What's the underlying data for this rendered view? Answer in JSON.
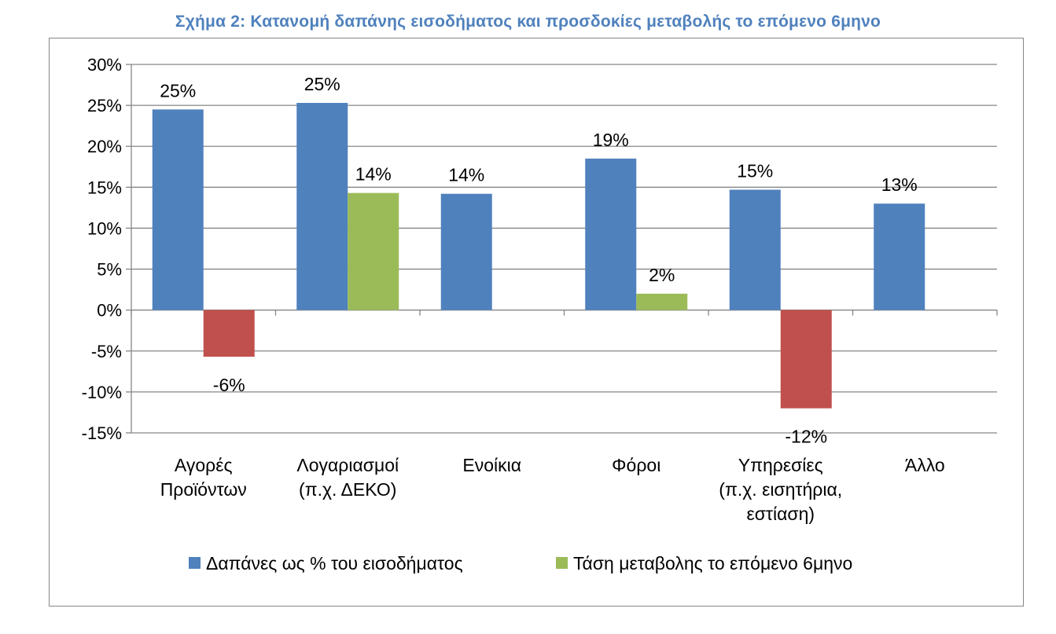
{
  "chart_data": {
    "type": "bar",
    "title": "Σχήμα 2: Κατανομή δαπάνης εισοδήματος και προσδοκίες μεταβολής το επόμενο 6μηνο",
    "categories": [
      [
        "Αγορές",
        "Προϊόντων"
      ],
      [
        "Λογαριασμοί",
        "(π.χ. ΔΕΚΟ)"
      ],
      [
        "Ενοίκια"
      ],
      [
        "Φόροι"
      ],
      [
        "Υπηρεσίες",
        "(π.χ. εισητήρια,",
        "εστίαση)"
      ],
      [
        "Άλλο"
      ]
    ],
    "series": [
      {
        "name": "Δαπάνες ως % του εισοδήματος",
        "values": [
          24.5,
          25.3,
          14.2,
          18.5,
          14.7,
          13.0
        ],
        "labels": [
          "25%",
          "25%",
          "14%",
          "19%",
          "15%",
          "13%"
        ]
      },
      {
        "name": "Τάση μεταβολης το επόμενο 6μηνο",
        "values": [
          -5.7,
          14.3,
          null,
          2.0,
          -12.0,
          null
        ],
        "labels": [
          "-6%",
          "14%",
          null,
          "2%",
          "-12%",
          null
        ]
      }
    ],
    "ylim": [
      -15,
      30
    ],
    "yticks": [
      "30%",
      "25%",
      "20%",
      "15%",
      "10%",
      "5%",
      "0%",
      "-5%",
      "-10%",
      "-15%"
    ],
    "grid": true,
    "legend_position": "bottom",
    "colors": {
      "blue": "#4F81BD",
      "green": "#9BBB59",
      "red": "#C0504D",
      "title": "#4F81BD",
      "grid": "#868686"
    }
  }
}
